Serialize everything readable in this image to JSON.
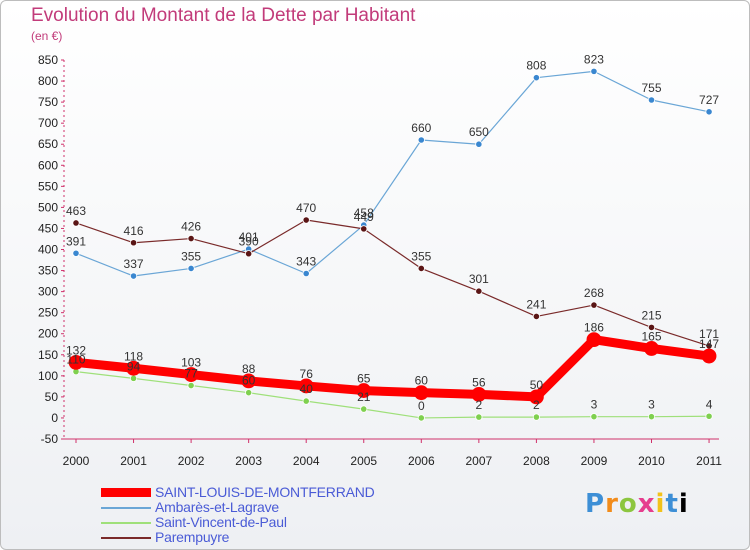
{
  "title": "Evolution du Montant de la Dette par Habitant",
  "subtitle": "(en €)",
  "logo": [
    "P",
    "r",
    "o",
    "x",
    "i",
    "t",
    "i"
  ],
  "colors": {
    "saint_louis": "#ff0000",
    "ambares": "#6aa6d6",
    "saint_vincent": "#9fe07a",
    "parempuyre": "#7a2a2a",
    "ambares_marker": "#3a87d0",
    "saint_vincent_marker": "#7fd04f",
    "parempuyre_marker": "#5a1515",
    "title": "#c23b7a",
    "legend_text": "#4a5bd6"
  },
  "chart_data": {
    "type": "line",
    "title": "Evolution du Montant de la Dette par Habitant",
    "ylabel": "(en €)",
    "xlabel": "",
    "ylim": [
      -50,
      850
    ],
    "y_ticks": [
      -50,
      0,
      50,
      100,
      150,
      200,
      250,
      300,
      350,
      400,
      450,
      500,
      550,
      600,
      650,
      700,
      750,
      800,
      850
    ],
    "categories": [
      "2000",
      "2001",
      "2002",
      "2003",
      "2004",
      "2005",
      "2006",
      "2007",
      "2008",
      "2009",
      "2010",
      "2011"
    ],
    "legend_position": "bottom-left",
    "grid": false,
    "series": [
      {
        "name": "SAINT-LOUIS-DE-MONTFERRAND",
        "values": [
          132,
          118,
          103,
          88,
          76,
          65,
          60,
          56,
          50,
          186,
          165,
          147
        ]
      },
      {
        "name": "Ambarès-et-Lagrave",
        "values": [
          391,
          337,
          355,
          401,
          343,
          458,
          660,
          650,
          808,
          823,
          755,
          727
        ]
      },
      {
        "name": "Saint-Vincent-de-Paul",
        "values": [
          110,
          94,
          77,
          60,
          40,
          21,
          0,
          2,
          2,
          3,
          3,
          4
        ]
      },
      {
        "name": "Parempuyre",
        "values": [
          463,
          416,
          426,
          390,
          470,
          449,
          355,
          301,
          241,
          268,
          215,
          171
        ]
      }
    ]
  }
}
